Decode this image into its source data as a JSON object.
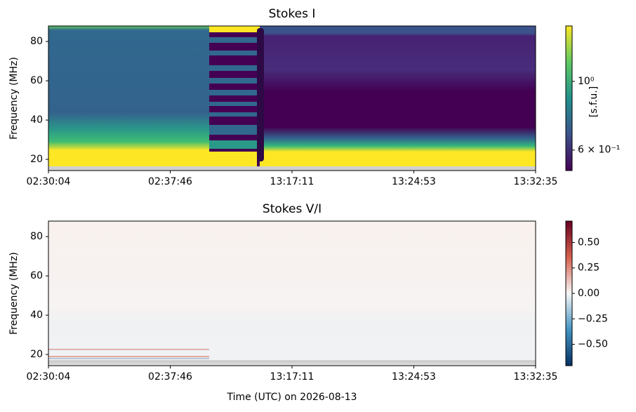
{
  "chart_data": [
    {
      "type": "heatmap",
      "title": "Stokes I",
      "ylabel": "Frequency (MHz)",
      "xtick_labels": [
        "02:30:04",
        "02:37:46",
        "13:17:11",
        "13:24:53",
        "13:32:35"
      ],
      "ylim": [
        14.3,
        87.9
      ],
      "yticks": [
        20,
        40,
        60,
        80
      ],
      "colormap": "viridis",
      "colorbar": {
        "label": "[s.f.u.]",
        "scale": "log",
        "lim": [
          0.515,
          1.51
        ],
        "ticks": [
          {
            "value": 1,
            "label": "10⁰"
          },
          {
            "value": 0.6,
            "label": "6 × 10⁻¹"
          }
        ]
      }
    },
    {
      "type": "heatmap",
      "title": "Stokes V/I",
      "ylabel": "Frequency (MHz)",
      "xlabel": "Time (UTC) on 2026-08-13",
      "xtick_labels": [
        "02:30:04",
        "02:37:46",
        "13:17:11",
        "13:24:53",
        "13:32:35"
      ],
      "ylim": [
        14.3,
        87.9
      ],
      "yticks": [
        20,
        40,
        60,
        80
      ],
      "colormap": "RdBu_r",
      "colorbar": {
        "scale": "linear",
        "lim": [
          -0.71,
          0.71
        ],
        "ticks": [
          {
            "value": -0.5,
            "label": "−0.50"
          },
          {
            "value": -0.25,
            "label": "−0.25"
          },
          {
            "value": 0,
            "label": "0.00"
          },
          {
            "value": 0.25,
            "label": "0.25"
          },
          {
            "value": 0.5,
            "label": "0.50"
          }
        ]
      }
    }
  ]
}
